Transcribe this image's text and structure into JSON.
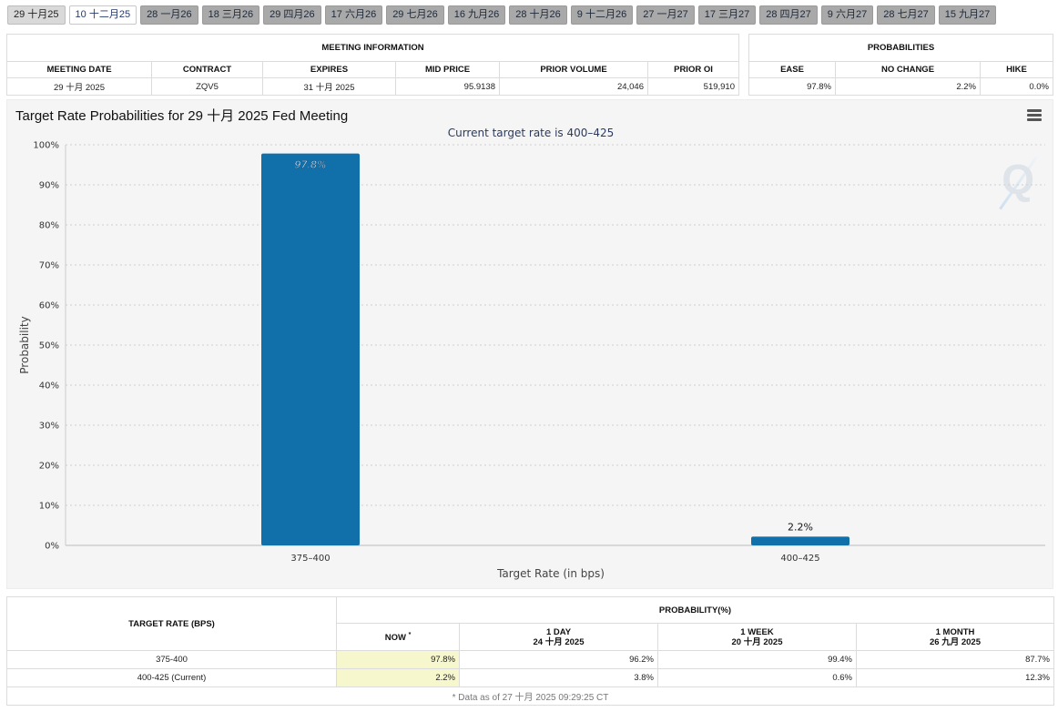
{
  "tabs": [
    {
      "label": "29 十月25",
      "state": "first"
    },
    {
      "label": "10 十二月25",
      "state": "active"
    },
    {
      "label": "28 一月26",
      "state": ""
    },
    {
      "label": "18 三月26",
      "state": ""
    },
    {
      "label": "29 四月26",
      "state": ""
    },
    {
      "label": "17 六月26",
      "state": ""
    },
    {
      "label": "29 七月26",
      "state": ""
    },
    {
      "label": "16 九月26",
      "state": ""
    },
    {
      "label": "28 十月26",
      "state": ""
    },
    {
      "label": "9 十二月26",
      "state": ""
    },
    {
      "label": "27 一月27",
      "state": ""
    },
    {
      "label": "17 三月27",
      "state": ""
    },
    {
      "label": "28 四月27",
      "state": ""
    },
    {
      "label": "9 六月27",
      "state": ""
    },
    {
      "label": "28 七月27",
      "state": ""
    },
    {
      "label": "15 九月27",
      "state": ""
    }
  ],
  "meeting_info": {
    "section_title": "MEETING INFORMATION",
    "headers": [
      "MEETING DATE",
      "CONTRACT",
      "EXPIRES",
      "MID PRICE",
      "PRIOR VOLUME",
      "PRIOR OI"
    ],
    "values": [
      "29 十月 2025",
      "ZQV5",
      "31 十月 2025",
      "95.9138",
      "24,046",
      "519,910"
    ]
  },
  "probabilities": {
    "section_title": "PROBABILITIES",
    "headers": [
      "EASE",
      "NO CHANGE",
      "HIKE"
    ],
    "values": [
      "97.8%",
      "2.2%",
      "0.0%"
    ]
  },
  "chart": {
    "title": "Target Rate Probabilities for 29 十月 2025 Fed Meeting",
    "subtitle": "Current target rate is 400–425",
    "watermark": "Q"
  },
  "chart_data": {
    "type": "bar",
    "title": "Target Rate Probabilities for 29 十月 2025 Fed Meeting",
    "subtitle": "Current target rate is 400–425",
    "categories": [
      "375–400",
      "400–425"
    ],
    "values": [
      97.8,
      2.2
    ],
    "data_labels": [
      "97.8%",
      "2.2%"
    ],
    "xlabel": "Target Rate (in bps)",
    "ylabel": "Probability",
    "ylim": [
      0,
      100
    ],
    "yticks": [
      0,
      10,
      20,
      30,
      40,
      50,
      60,
      70,
      80,
      90,
      100
    ],
    "ytick_labels": [
      "0%",
      "10%",
      "20%",
      "30%",
      "40%",
      "50%",
      "60%",
      "70%",
      "80%",
      "90%",
      "100%"
    ],
    "grid": true,
    "bar_color": "#1170aa"
  },
  "bottom_table": {
    "col_target": "TARGET RATE (BPS)",
    "col_group": "PROBABILITY(%)",
    "col_now": "NOW",
    "col_now_mark": "*",
    "col_1day": "1 DAY",
    "col_1day_date": "24 十月 2025",
    "col_1week": "1 WEEK",
    "col_1week_date": "20 十月 2025",
    "col_1month": "1 MONTH",
    "col_1month_date": "26 九月 2025",
    "rows": [
      {
        "rate": "375-400",
        "now": "97.8%",
        "day": "96.2%",
        "week": "99.4%",
        "month": "87.7%"
      },
      {
        "rate": "400-425 (Current)",
        "now": "2.2%",
        "day": "3.8%",
        "week": "0.6%",
        "month": "12.3%"
      }
    ],
    "note": "* Data as of 27 十月 2025 09:29:25 CT"
  }
}
